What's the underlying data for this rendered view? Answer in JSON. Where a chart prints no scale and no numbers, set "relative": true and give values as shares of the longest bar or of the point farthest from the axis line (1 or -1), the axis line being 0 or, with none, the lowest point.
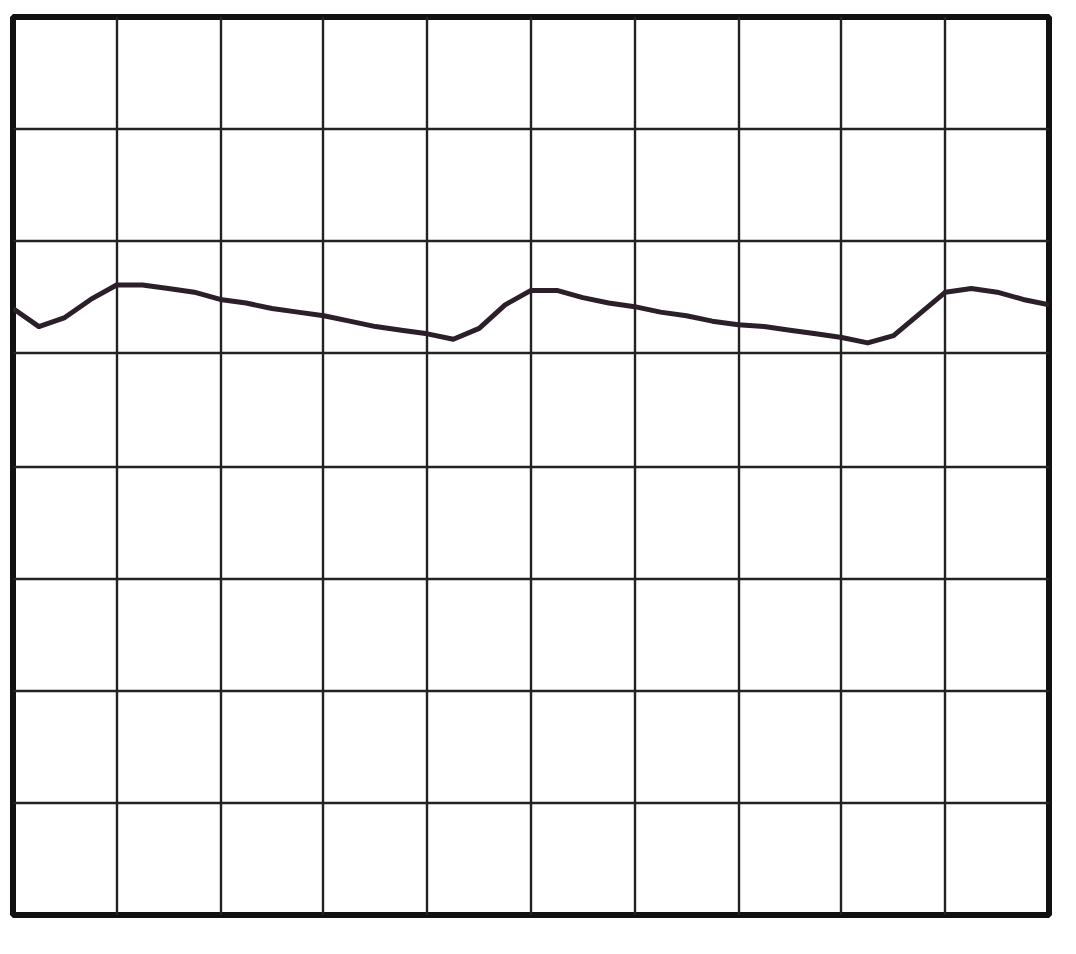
{
  "chart_data": {
    "type": "line",
    "relative": true,
    "grid": true,
    "marker": "none",
    "line_style": "solid",
    "categories": [
      null,
      null,
      null,
      null,
      null,
      null,
      null,
      null,
      null,
      null,
      null,
      null,
      null,
      null,
      null,
      null,
      null,
      null,
      null,
      null,
      null,
      null,
      null,
      null,
      null,
      null,
      null,
      null,
      null,
      null,
      null,
      null,
      null,
      null,
      null,
      null,
      null,
      null,
      null,
      null,
      null
    ],
    "series": [
      {
        "color": "#2b1f2a",
        "values": [
          0.87,
          0.77,
          0.82,
          0.92,
          1,
          1,
          0.98,
          0.96,
          0.92,
          0.9,
          0.87,
          0.85,
          0.83,
          0.8,
          0.77,
          0.75,
          0.73,
          0.7,
          0.76,
          0.89,
          0.97,
          0.97,
          0.93,
          0.9,
          0.88,
          0.85,
          0.83,
          0.8,
          0.78,
          0.77,
          0.75,
          0.73,
          0.71,
          0.68,
          0.72,
          0.84,
          0.96,
          0.98,
          0.96,
          0.92,
          0.89
        ]
      }
    ]
  }
}
